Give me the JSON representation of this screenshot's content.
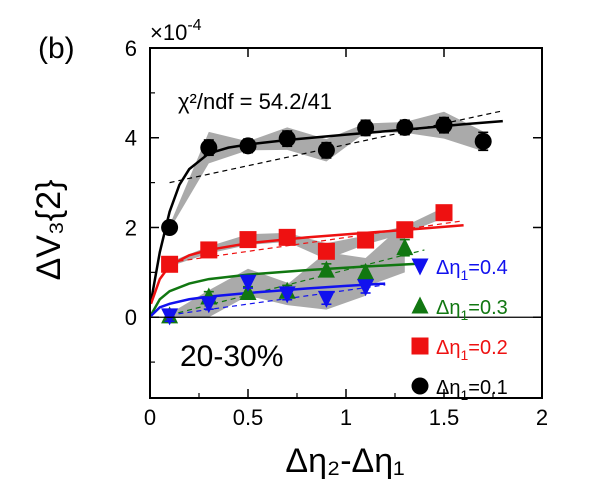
{
  "chart_data": {
    "type": "scatter",
    "panel_label": "(b)",
    "centrality": "20-30%",
    "fit_text": "χ²/ndf = 54.2/41",
    "xlabel": "Δη₂-Δη₁",
    "ylabel": "ΔV₃{2}",
    "multiplier": "×10",
    "multiplier_exp": "-4",
    "xlim": [
      0,
      2
    ],
    "ylim": [
      -1.8,
      6
    ],
    "x_ticks": [
      0,
      0.5,
      1,
      1.5,
      2
    ],
    "x_tick_labels": [
      "0",
      "0.5",
      "1",
      "1.5",
      "2"
    ],
    "y_ticks": [
      0,
      2,
      4,
      6
    ],
    "y_tick_labels": [
      "0",
      "2",
      "4",
      "6"
    ],
    "series": [
      {
        "name": "Δη₁=0.1",
        "label_prefix": "Δη",
        "label_sub": "1",
        "label_value": "=0.1",
        "color": "#000000",
        "marker": "circle",
        "x": [
          0.1,
          0.3,
          0.5,
          0.7,
          0.9,
          1.1,
          1.3,
          1.5,
          1.7
        ],
        "y": [
          2.0,
          3.78,
          3.82,
          3.98,
          3.72,
          4.22,
          4.23,
          4.28,
          3.92
        ],
        "err": [
          0.13,
          0.17,
          0.15,
          0.17,
          0.17,
          0.17,
          0.16,
          0.17,
          0.2
        ],
        "band_half": [
          0.05,
          0.35,
          0.1,
          0.25,
          0.25,
          0.1,
          0.12,
          0.3,
          0.22
        ],
        "fit_curve": {
          "x": [
            0.005,
            0.05,
            0.1,
            0.15,
            0.2,
            0.3,
            0.4,
            0.5,
            0.7,
            1.0,
            1.3,
            1.6,
            1.8
          ],
          "y": [
            0.35,
            1.45,
            2.35,
            2.95,
            3.3,
            3.65,
            3.78,
            3.85,
            3.95,
            4.07,
            4.18,
            4.3,
            4.37
          ]
        },
        "linear_fit": {
          "x": [
            0.1,
            1.8
          ],
          "y": [
            3.0,
            4.6
          ]
        }
      },
      {
        "name": "Δη₁=0.2",
        "label_prefix": "Δη",
        "label_sub": "1",
        "label_value": "=0.2",
        "color": "#ee1111",
        "marker": "square",
        "x": [
          0.1,
          0.3,
          0.5,
          0.7,
          0.9,
          1.1,
          1.3,
          1.5
        ],
        "y": [
          1.18,
          1.5,
          1.73,
          1.78,
          1.47,
          1.72,
          1.95,
          2.33
        ],
        "err": [
          0.12,
          0.12,
          0.12,
          0.13,
          0.12,
          0.12,
          0.13,
          0.15
        ],
        "band_half": [
          0.05,
          0.08,
          0.12,
          0.1,
          0.18,
          0.1,
          0.08,
          0.12
        ],
        "fit_curve": {
          "x": [
            0.005,
            0.05,
            0.1,
            0.2,
            0.3,
            0.5,
            0.8,
            1.1,
            1.4,
            1.6
          ],
          "y": [
            0.3,
            0.85,
            1.15,
            1.38,
            1.5,
            1.65,
            1.78,
            1.88,
            1.98,
            2.05
          ]
        },
        "linear_fit": {
          "x": [
            0.1,
            1.6
          ],
          "y": [
            1.22,
            2.15
          ]
        }
      },
      {
        "name": "Δη₁=0.3",
        "label_prefix": "Δη",
        "label_sub": "1",
        "label_value": "=0.3",
        "color": "#117711",
        "marker": "triangle-up",
        "x": [
          0.1,
          0.3,
          0.5,
          0.7,
          0.9,
          1.1,
          1.3
        ],
        "y": [
          0.03,
          0.45,
          0.55,
          0.58,
          1.05,
          1.0,
          1.55
        ],
        "err": [
          0.12,
          0.12,
          0.13,
          0.13,
          0.14,
          0.15,
          0.18
        ],
        "band_half": [
          0.05,
          0.12,
          0.12,
          0.15,
          0.4,
          0.32,
          0.55
        ],
        "fit_curve": {
          "x": [
            0.005,
            0.05,
            0.1,
            0.2,
            0.3,
            0.5,
            0.8,
            1.1,
            1.4
          ],
          "y": [
            0.05,
            0.4,
            0.58,
            0.75,
            0.85,
            0.95,
            1.05,
            1.13,
            1.2
          ]
        },
        "linear_fit": {
          "x": [
            0.1,
            1.4
          ],
          "y": [
            0.05,
            1.5
          ]
        }
      },
      {
        "name": "Δη₁=0.4",
        "label_prefix": "Δη",
        "label_sub": "1",
        "label_value": "=0.4",
        "color": "#1111ee",
        "marker": "triangle-down",
        "x": [
          0.1,
          0.3,
          0.5,
          0.7,
          0.9,
          1.1
        ],
        "y": [
          0.03,
          0.3,
          0.78,
          0.52,
          0.42,
          0.68
        ],
        "err": [
          0.12,
          0.12,
          0.13,
          0.13,
          0.13,
          0.14
        ],
        "band_half": [
          0.05,
          0.3,
          0.3,
          0.25,
          0.25,
          0.2
        ],
        "fit_curve": {
          "x": [
            0.005,
            0.05,
            0.1,
            0.2,
            0.3,
            0.5,
            0.8,
            1.0,
            1.2
          ],
          "y": [
            0.03,
            0.22,
            0.3,
            0.4,
            0.46,
            0.54,
            0.64,
            0.7,
            0.75
          ]
        },
        "linear_fit": {
          "x": [
            0.1,
            1.2
          ],
          "y": [
            0.05,
            0.72
          ]
        }
      }
    ],
    "legend_placement": "bottom-right",
    "legend_order": [
      3,
      2,
      1,
      0
    ],
    "band_color": "#aaaaaa"
  }
}
